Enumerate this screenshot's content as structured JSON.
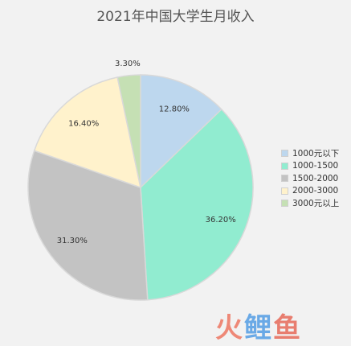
{
  "chart_data": {
    "type": "pie",
    "title": "2021年中国大学生月收入",
    "categories": [
      "1000元以下",
      "1000-1500",
      "1500-2000",
      "2000-3000",
      "3000元以上"
    ],
    "values": [
      12.8,
      36.2,
      31.3,
      16.4,
      3.3
    ],
    "value_labels": [
      "12.80%",
      "36.20%",
      "31.30%",
      "16.40%",
      "3.30%"
    ],
    "colors": [
      "#bdd7ee",
      "#91ecd0",
      "#c3c3c3",
      "#fff2cc",
      "#c5e0b4"
    ],
    "legend_position": "right",
    "start_angle": "top",
    "direction": "clockwise"
  },
  "watermark": {
    "chars": [
      "火",
      "鲤",
      "鱼"
    ]
  }
}
